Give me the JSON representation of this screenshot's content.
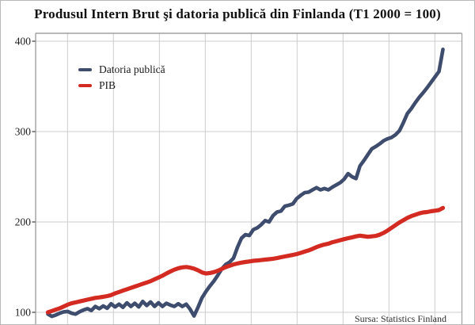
{
  "chart": {
    "title": "Produsul Intern Brut şi datoria publică din Finlanda (T1 2000 = 100)",
    "source": "Sursa: Statistics Finland",
    "chart_data": {
      "type": "line",
      "title": "Produsul Intern Brut şi datoria publică din Finlanda (T1 2000 = 100)",
      "xlabel": "",
      "ylabel": "",
      "x_tick_labels_visible": false,
      "x_description": "quarterly observations from T1 2000 (index base 100) to the last plotted quarter; x-axis labels are cropped out of the visible frame",
      "yticks": [
        100,
        200,
        300,
        400
      ],
      "ylim_visible": [
        85,
        409
      ],
      "grid": true,
      "legend_position": "top-left-inside",
      "series": [
        {
          "name": "Datoria publică",
          "color": "#3e4c6d",
          "values": [
            98,
            95.5,
            97,
            99,
            100.5,
            101,
            99,
            98,
            100.5,
            102.5,
            104,
            102,
            106.5,
            104,
            107,
            104.5,
            109.5,
            106,
            109,
            105.5,
            110.5,
            106.5,
            110,
            106,
            112,
            107.5,
            111.5,
            106.5,
            110.5,
            106.5,
            110,
            108,
            106.5,
            109.5,
            106.5,
            109,
            103.5,
            96,
            105.5,
            116,
            123,
            129,
            134.5,
            141,
            148,
            153,
            155.5,
            160,
            172,
            182,
            186,
            185,
            191.5,
            193.5,
            197,
            201.5,
            200,
            207,
            211,
            212,
            217.5,
            218.5,
            220,
            226,
            229.5,
            232.5,
            233,
            235.5,
            238,
            235.5,
            237,
            235.5,
            238.5,
            241,
            243.5,
            247.5,
            253.5,
            250,
            248,
            262,
            268,
            274.5,
            281,
            283.5,
            286.5,
            290,
            292,
            293.5,
            296.5,
            301,
            310,
            320,
            325.5,
            332,
            338,
            343,
            348.5,
            354.5,
            360.5,
            366.5,
            391
          ]
        },
        {
          "name": "PIB",
          "color": "#d32a21",
          "values": [
            100,
            101.5,
            103,
            104.5,
            106.5,
            108.5,
            110,
            111,
            112,
            113,
            114,
            115,
            116,
            116.5,
            117.2,
            118,
            119,
            121,
            122.5,
            124,
            125.5,
            127,
            128.5,
            130,
            131.5,
            133,
            134.5,
            136.5,
            138.5,
            140.5,
            143,
            145.2,
            147.2,
            148.8,
            149.7,
            150.2,
            149.5,
            148.3,
            146.5,
            144.2,
            143,
            143.5,
            144.5,
            146,
            148,
            150,
            151.5,
            153,
            154,
            155,
            155.7,
            156.3,
            157,
            157.4,
            157.8,
            158.3,
            158.8,
            159.3,
            160,
            161,
            161.8,
            162.6,
            163.5,
            164.5,
            165.8,
            167.2,
            168.5,
            170.3,
            172.2,
            173.8,
            175,
            176,
            177.5,
            178.6,
            179.8,
            181,
            182,
            183,
            184,
            184.8,
            184.2,
            183.6,
            184,
            184.6,
            186,
            188,
            190.5,
            193.5,
            196.5,
            199.5,
            202,
            204.5,
            206.5,
            208,
            209.5,
            210.5,
            211,
            211.8,
            212.5,
            213.2,
            215.5
          ]
        }
      ]
    }
  }
}
